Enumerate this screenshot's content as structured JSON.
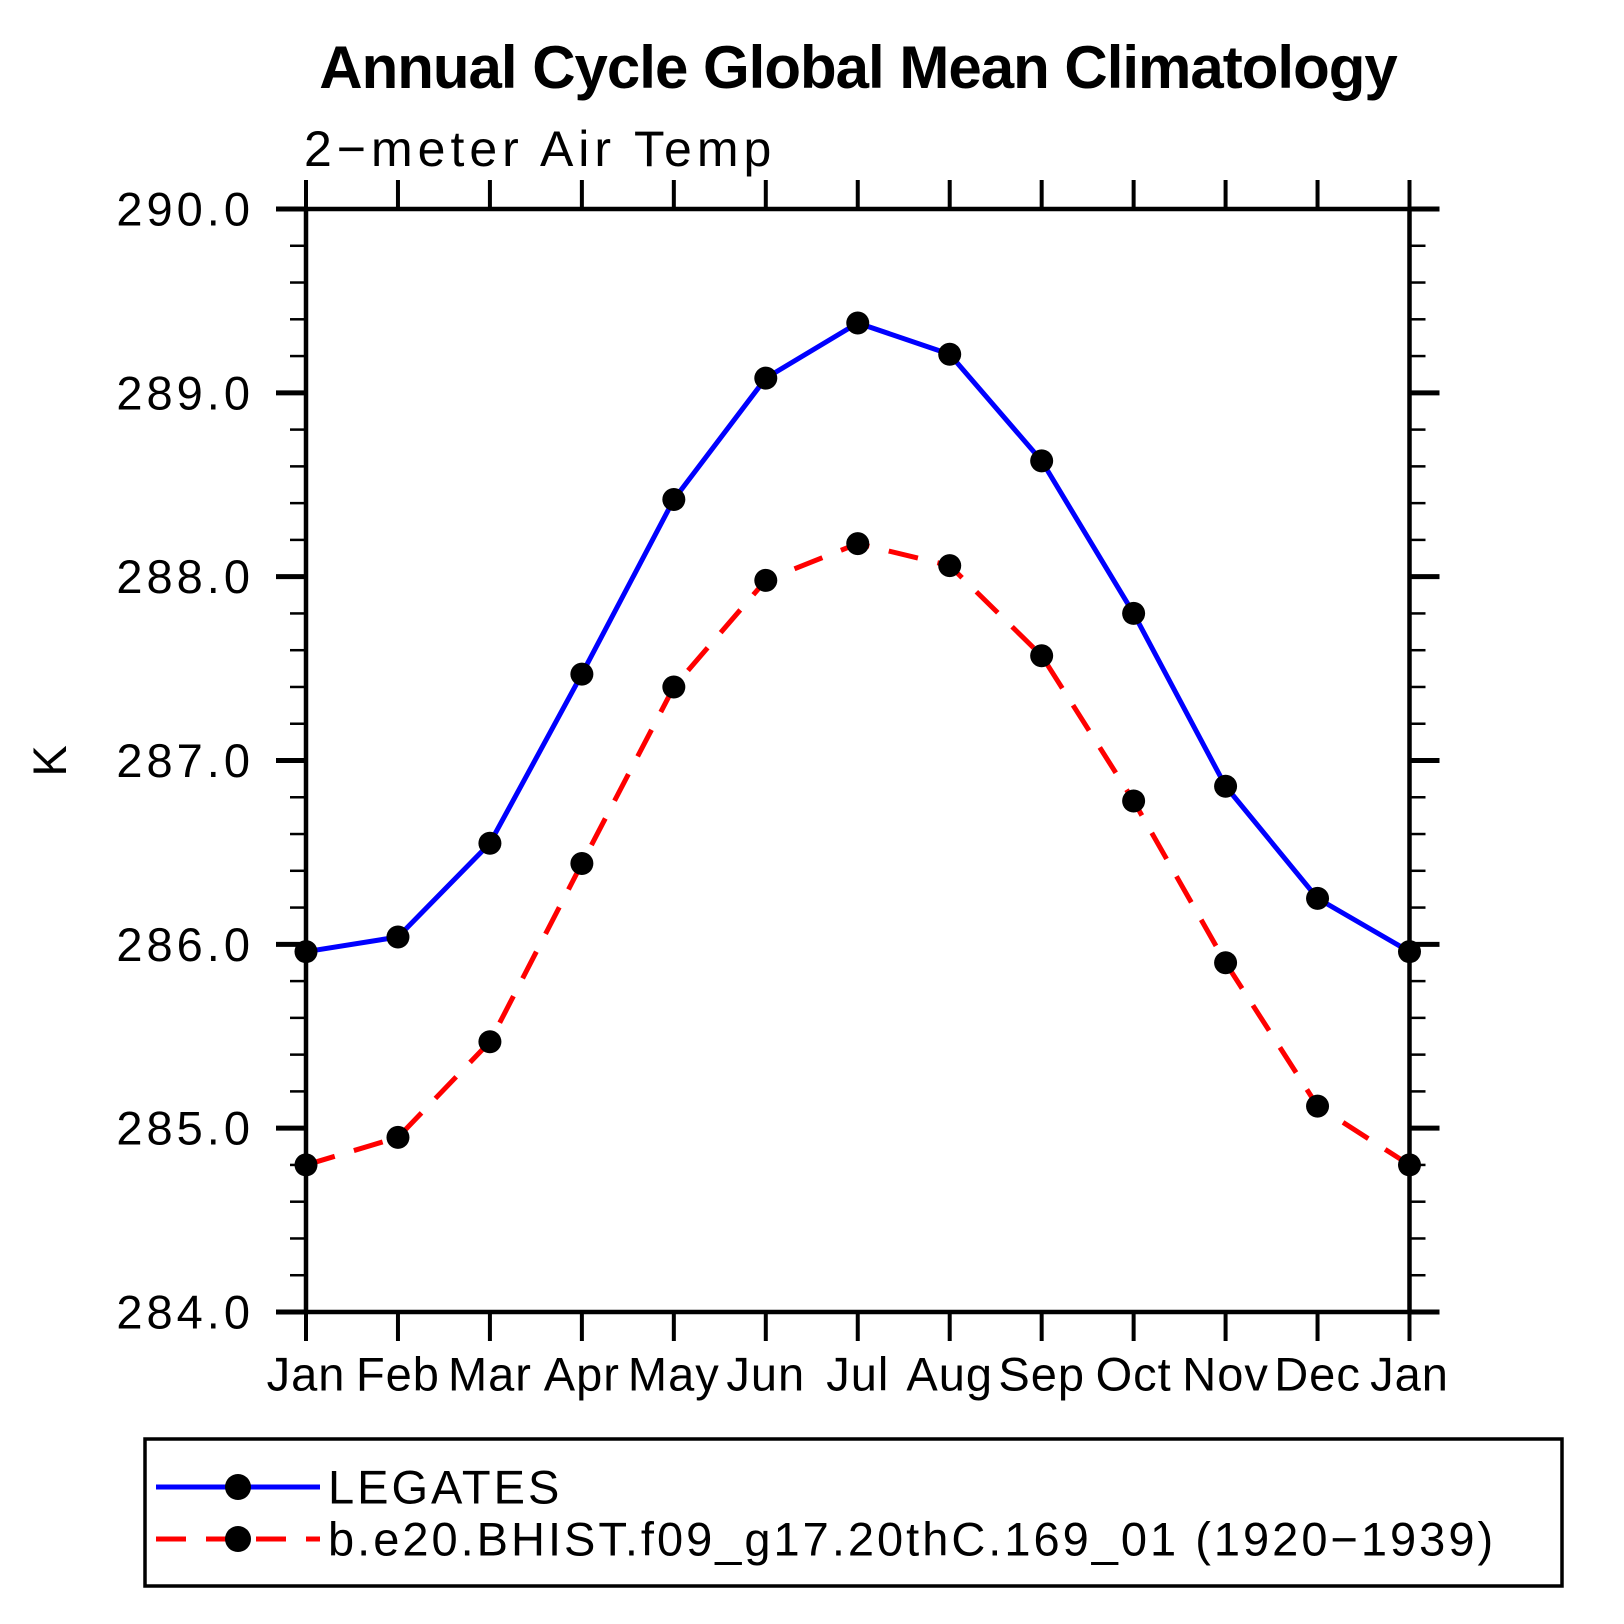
{
  "page": {
    "background_color": "#ffffff",
    "axis_color": "#000000",
    "text_color": "#000000"
  },
  "chart_data": {
    "type": "line",
    "title": "Annual Cycle Global Mean Climatology",
    "subtitle": "2−meter Air Temp",
    "ylabel": "K",
    "xlabel": "",
    "x_categories": [
      "Jan",
      "Feb",
      "Mar",
      "Apr",
      "May",
      "Jun",
      "Jul",
      "Aug",
      "Sep",
      "Oct",
      "Nov",
      "Dec",
      "Jan"
    ],
    "ylim": [
      284.0,
      290.0
    ],
    "y_major_step": 1.0,
    "y_minor_step": 0.2,
    "y_tick_labels": [
      "284.0",
      "285.0",
      "286.0",
      "287.0",
      "288.0",
      "289.0",
      "290.0"
    ],
    "grid": false,
    "tick_style": "outward-all-four-sides",
    "legend_position": "bottom-left-box",
    "series": [
      {
        "name": "LEGATES",
        "color": "#0000ff",
        "line_style": "solid",
        "marker": "filled-circle",
        "marker_color": "#000000",
        "values": [
          285.96,
          286.04,
          286.55,
          287.47,
          288.42,
          289.08,
          289.38,
          289.21,
          288.63,
          287.8,
          286.86,
          286.25,
          285.96
        ]
      },
      {
        "name": "b.e20.BHIST.f09_g17.20thC.169_01 (1920−1939)",
        "color": "#ff0000",
        "line_style": "dashed",
        "marker": "filled-circle",
        "marker_color": "#000000",
        "values": [
          284.8,
          284.95,
          285.47,
          286.44,
          287.4,
          287.98,
          288.18,
          288.06,
          287.57,
          286.78,
          285.9,
          285.12,
          284.8
        ]
      }
    ]
  }
}
